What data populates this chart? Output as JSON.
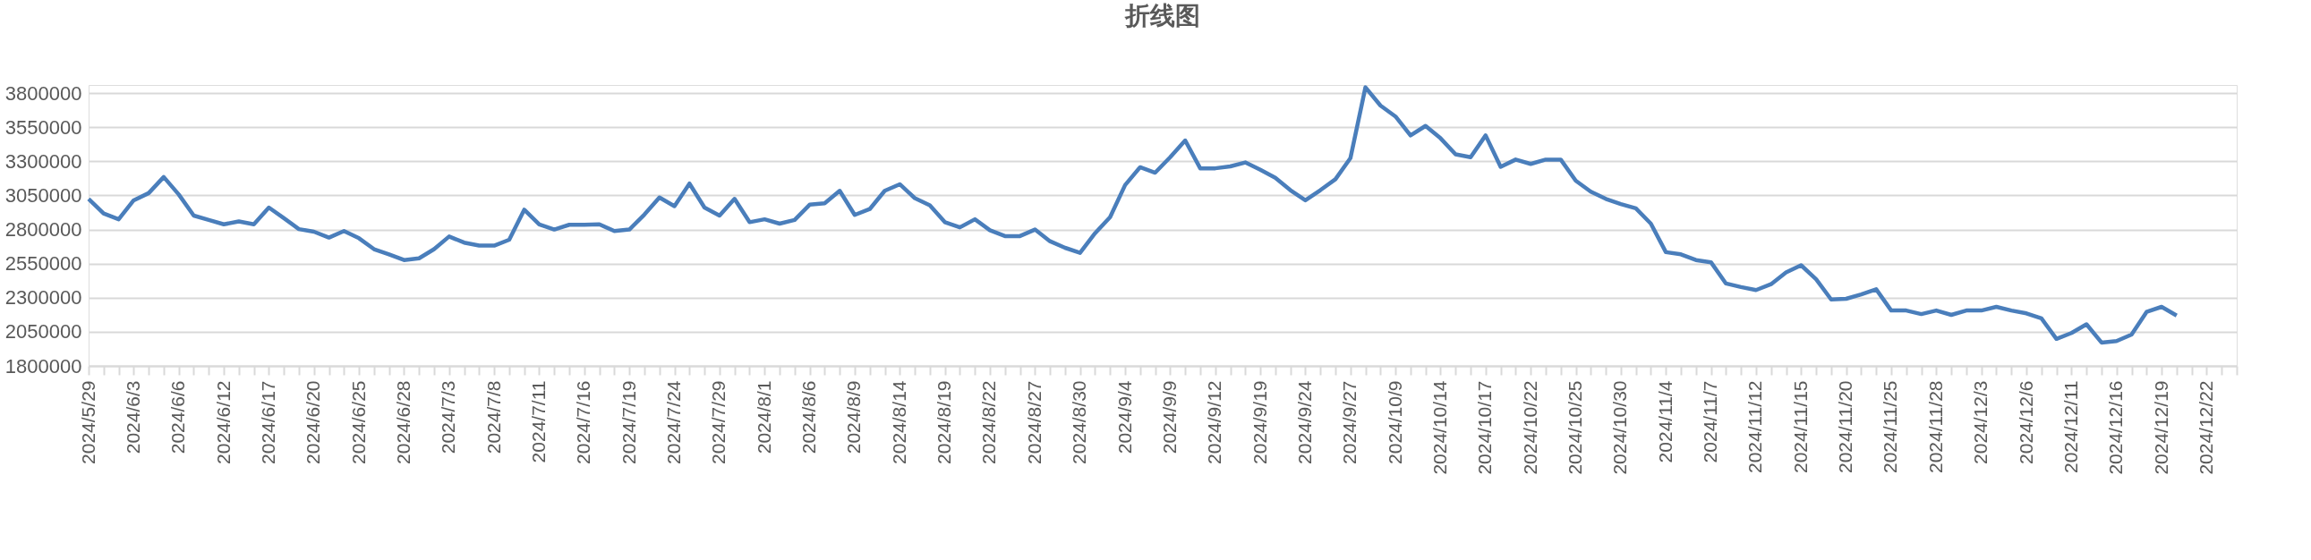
{
  "chart_data": {
    "type": "line",
    "title": "折线图",
    "categories": [
      "2024/5/29",
      null,
      null,
      "2024/6/3",
      null,
      null,
      "2024/6/6",
      null,
      null,
      "2024/6/12",
      null,
      null,
      "2024/6/17",
      null,
      null,
      "2024/6/20",
      null,
      null,
      "2024/6/25",
      null,
      null,
      "2024/6/28",
      null,
      null,
      "2024/7/3",
      null,
      null,
      "2024/7/8",
      null,
      null,
      "2024/7/11",
      null,
      null,
      "2024/7/16",
      null,
      null,
      "2024/7/19",
      null,
      null,
      "2024/7/24",
      null,
      null,
      "2024/7/29",
      null,
      null,
      "2024/8/1",
      null,
      null,
      "2024/8/6",
      null,
      null,
      "2024/8/9",
      null,
      null,
      "2024/8/14",
      null,
      null,
      "2024/8/19",
      null,
      null,
      "2024/8/22",
      null,
      null,
      "2024/8/27",
      null,
      null,
      "2024/8/30",
      null,
      null,
      "2024/9/4",
      null,
      null,
      "2024/9/9",
      null,
      null,
      "2024/9/12",
      null,
      null,
      "2024/9/19",
      null,
      null,
      "2024/9/24",
      null,
      null,
      "2024/9/27",
      null,
      null,
      "2024/10/9",
      null,
      null,
      "2024/10/14",
      null,
      null,
      "2024/10/17",
      null,
      null,
      "2024/10/22",
      null,
      null,
      "2024/10/25",
      null,
      null,
      "2024/10/30",
      null,
      null,
      "2024/11/4",
      null,
      null,
      "2024/11/7",
      null,
      null,
      "2024/11/12",
      null,
      null,
      "2024/11/15",
      null,
      null,
      "2024/11/20",
      null,
      null,
      "2024/11/25",
      null,
      null,
      "2024/11/28",
      null,
      null,
      "2024/12/3",
      null,
      null,
      "2024/12/6",
      null,
      null,
      "2024/12/11",
      null,
      null,
      "2024/12/16",
      null,
      null,
      "2024/12/19",
      null,
      null,
      "2024/12/22",
      null,
      null
    ],
    "series": [
      {
        "color": "#4a7ebb",
        "values": [
          3025000,
          2918000,
          2875000,
          3014000,
          3067000,
          3185000,
          3057000,
          2902000,
          2870000,
          2838000,
          2859000,
          2838000,
          2961000,
          2883000,
          2803000,
          2784000,
          2741000,
          2789000,
          2736000,
          2656000,
          2618000,
          2576000,
          2589000,
          2656000,
          2749000,
          2704000,
          2682000,
          2682000,
          2725000,
          2945000,
          2838000,
          2800000,
          2835000,
          2835000,
          2838000,
          2789000,
          2800000,
          2910000,
          3035000,
          2971000,
          3137000,
          2961000,
          2902000,
          3025000,
          2854000,
          2875000,
          2843000,
          2870000,
          2982000,
          2993000,
          3084000,
          2907000,
          2950000,
          3084000,
          3132000,
          3030000,
          2977000,
          2854000,
          2816000,
          2875000,
          2795000,
          2752000,
          2752000,
          2800000,
          2714000,
          2666000,
          2629000,
          2773000,
          2891000,
          3126000,
          3257000,
          3217000,
          3330000,
          3453000,
          3249000,
          3249000,
          3263000,
          3292000,
          3239000,
          3180000,
          3089000,
          3014000,
          3089000,
          3169000,
          3324000,
          3843000,
          3709000,
          3629000,
          3490000,
          3560000,
          3469000,
          3351000,
          3330000,
          3490000,
          3260000,
          3313000,
          3281000,
          3313000,
          3313000,
          3158000,
          3078000,
          3025000,
          2987000,
          2955000,
          2843000,
          2634000,
          2618000,
          2576000,
          2560000,
          2404000,
          2378000,
          2356000,
          2399000,
          2485000,
          2538000,
          2436000,
          2287000,
          2292000,
          2324000,
          2362000,
          2206000,
          2206000,
          2180000,
          2206000,
          2174000,
          2206000,
          2206000,
          2233000,
          2206000,
          2185000,
          2148000,
          1998000,
          2041000,
          2105000,
          1971000,
          1982000,
          2030000,
          2196000,
          2233000,
          2169000,
          null,
          null,
          null,
          null
        ]
      }
    ],
    "ylim": [
      1800000,
      3860000
    ],
    "yticks": [
      1800000,
      2050000,
      2300000,
      2550000,
      2800000,
      3050000,
      3300000,
      3550000,
      3800000
    ],
    "grid": "y",
    "legend": false,
    "marker": "none",
    "line_style": "solid"
  }
}
